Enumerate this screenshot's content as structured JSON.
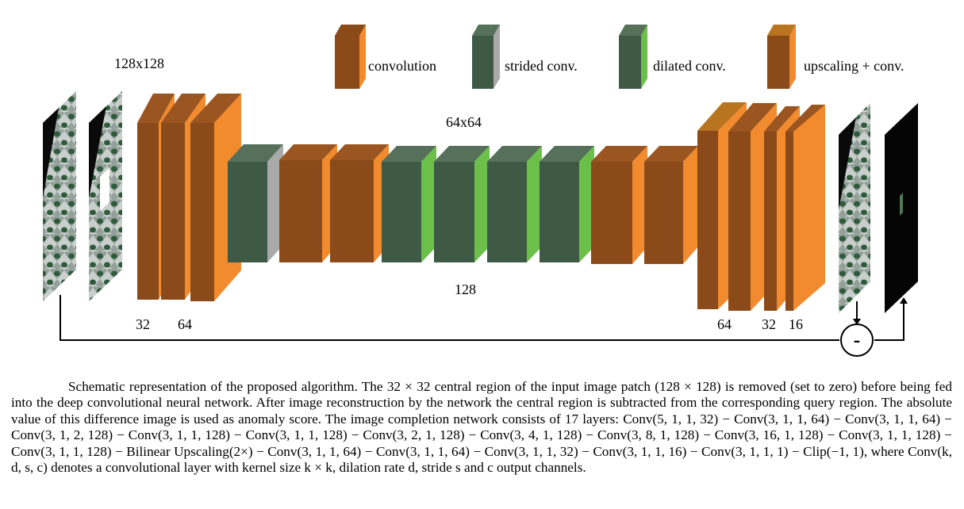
{
  "legend": {
    "convolution": "convolution",
    "strided": "strided conv.",
    "dilated": "dilated conv.",
    "upscaling": "upscaling + conv."
  },
  "labels": {
    "input_size": "128x128",
    "mid_size": "64x64",
    "depth_128": "128",
    "enc_32": "32",
    "enc_64": "64",
    "dec_64": "64",
    "dec_32": "32",
    "dec_16": "16",
    "minus": "-"
  },
  "colors": {
    "conv_front": "#8a4a1a",
    "conv_side": "#f28a2e",
    "strided_front": "#3f5a44",
    "strided_side": "#a7aaa8",
    "dilated_front": "#3f5a44",
    "dilated_side": "#6cc04a",
    "upscale_front": "#8a4a1a",
    "upscale_side": "#f28a2e",
    "upscale_top": "#b8741e"
  },
  "caption": "Schematic representation of the proposed algorithm. The 32 × 32 central region of the input image patch (128 × 128) is removed (set to zero) before being fed into the deep convolutional neural network. After image reconstruction by the network the central region is subtracted from the corresponding query region. The absolute value of this difference image is used as anomaly score. The image completion network consists of 17 layers: Conv(5, 1, 1, 32) − Conv(3, 1, 1, 64) − Conv(3, 1, 1, 64) − Conv(3, 1, 2, 128) − Conv(3, 1, 1, 128) − Conv(3, 1, 1, 128) − Conv(3, 2, 1, 128) − Conv(3, 4, 1, 128) − Conv(3, 8, 1, 128) − Conv(3, 16, 1, 128) − Conv(3, 1, 1, 128) − Conv(3, 1, 1, 128) − Bilinear Upscaling(2×) − Conv(3, 1, 1, 64) − Conv(3, 1, 1, 64) − Conv(3, 1, 1, 32) − Conv(3, 1, 1, 16) − Conv(3, 1, 1, 1) − Clip(−1, 1), where Conv(k, d, s, c) denotes a convolutional layer with kernel size k × k, dilation rate d, stride s and c output channels."
}
